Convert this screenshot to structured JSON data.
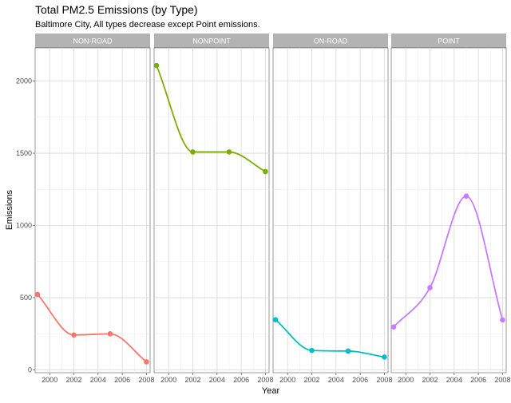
{
  "chart_data": {
    "type": "line",
    "title": "Total PM2.5 Emissions (by Type)",
    "subtitle": "Baltimore City, All types decrease except Point emissions.",
    "xlabel": "Year",
    "ylabel": "Emissions",
    "x": [
      1999,
      2002,
      2005,
      2008
    ],
    "xticks": [
      "2000",
      "2002",
      "2004",
      "2006",
      "2008"
    ],
    "yticks": [
      "0",
      "500",
      "1000",
      "1500",
      "2000"
    ],
    "xlim": [
      1998.8,
      2008.3
    ],
    "ylim": [
      -20,
      2230
    ],
    "grid": true,
    "legend": "none",
    "panels": [
      {
        "name": "NON-ROAD",
        "color": "#F8766D",
        "values": [
          522,
          241,
          249,
          55
        ]
      },
      {
        "name": "NONPOINT",
        "color": "#7CAE00",
        "values": [
          2108,
          1509,
          1509,
          1373
        ]
      },
      {
        "name": "ON-ROAD",
        "color": "#00BFC4",
        "values": [
          347,
          134,
          130,
          88
        ]
      },
      {
        "name": "POINT",
        "color": "#C77CFF",
        "values": [
          297,
          569,
          1203,
          345
        ]
      }
    ]
  }
}
